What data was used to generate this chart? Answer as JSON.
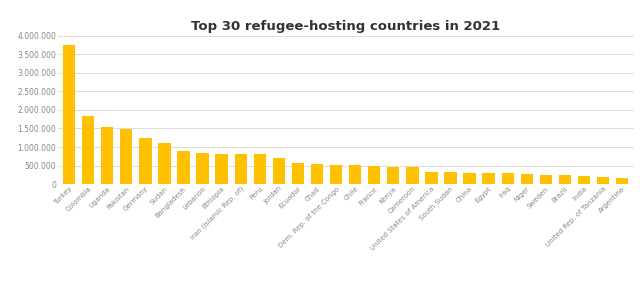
{
  "title": "Top 30 refugee-hosting countries in 2021",
  "categories": [
    "Turkey",
    "Colombia",
    "Uganda",
    "Pakistan",
    "Germany",
    "Sudan",
    "Bangladesh",
    "Lebanon",
    "Ethiopia",
    "Iran (Islamic Rep. of)",
    "Peru",
    "Jordan",
    "Ecuador",
    "Chad",
    "Dem. Rep. of the Congo",
    "Chile",
    "France",
    "Kenya",
    "Cameroon",
    "United States of America",
    "South Sudan",
    "China",
    "Egypt",
    "Iraq",
    "Niger",
    "Sweden",
    "Brazil",
    "India",
    "United Rep. of Tanzania",
    "Argentina"
  ],
  "values": [
    3760000,
    1843000,
    1530000,
    1491000,
    1255000,
    1103000,
    900000,
    840000,
    820000,
    800000,
    800000,
    710000,
    560000,
    555000,
    520000,
    505000,
    500000,
    475000,
    455000,
    330000,
    328000,
    300000,
    290000,
    290000,
    260000,
    250000,
    250000,
    210000,
    200000,
    167000
  ],
  "bar_color": "#FFC000",
  "background_color": "#FFFFFF",
  "ylim": [
    0,
    4000000
  ],
  "yticks": [
    0,
    500000,
    1000000,
    1500000,
    2000000,
    2500000,
    3000000,
    3500000,
    4000000
  ],
  "ytick_labels": [
    "0",
    "500.000",
    "1.000.000",
    "1.500.000",
    "2.000.000",
    "2.500.000",
    "3.000.000",
    "3.500.000",
    "4.000.000"
  ],
  "title_fontsize": 9.5,
  "ytick_fontsize": 5.5,
  "xtick_fontsize": 5.0,
  "title_color": "#333333",
  "tick_color": "#888888"
}
